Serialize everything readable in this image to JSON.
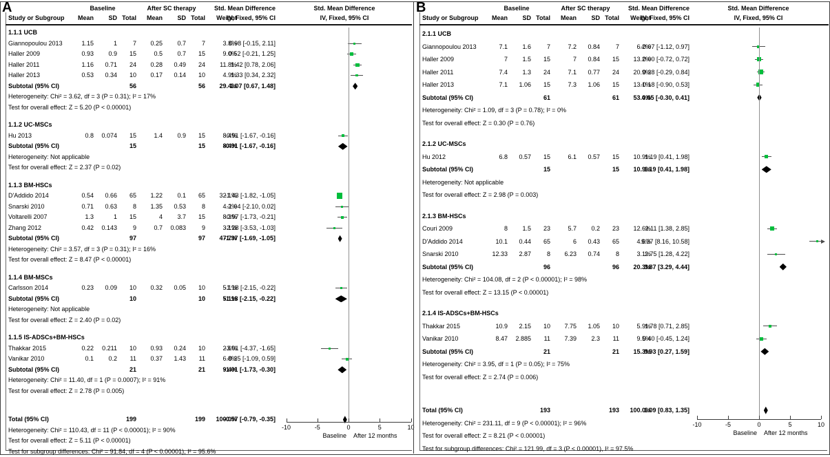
{
  "colors": {
    "marker_green": "#00bd3c",
    "ci_line": "#4a4a4a",
    "diamond": "#000000",
    "zero_line": "#8f8f8f",
    "axis": "#3a3a3a"
  },
  "chart_data": [
    {
      "type": "scatter",
      "variant": "forest-plot",
      "panel_label": "A",
      "headers": {
        "baseline": "Baseline",
        "after": "After SC therapy",
        "smd": "Std. Mean Difference",
        "study": "Study or Subgroup",
        "mean": "Mean",
        "sd": "SD",
        "total": "Total",
        "weight": "Weight",
        "ci": "IV, Fixed, 95% CI"
      },
      "axis": {
        "min": -10,
        "max": 10,
        "ticks": [
          -10,
          -5,
          0,
          5,
          10
        ],
        "left_label": "Baseline",
        "right_label": "After 12 months"
      },
      "sections": [
        {
          "name": "1.1.1 UCB",
          "studies": [
            {
              "study": "Giannopoulou 2013",
              "mean1": "1.15",
              "sd1": "1",
              "total1": "7",
              "mean2": "0.25",
              "sd2": "0.7",
              "total2": "7",
              "weight": "3.8%",
              "ci_text": "0.98 [-0.15, 2.11]",
              "smd": 0.98,
              "lo": -0.15,
              "hi": 2.11,
              "w": 3.8
            },
            {
              "study": "Haller 2009",
              "mean1": "0.93",
              "sd1": "0.9",
              "total1": "15",
              "mean2": "0.5",
              "sd2": "0.7",
              "total2": "15",
              "weight": "9.0%",
              "ci_text": "0.52 [-0.21, 1.25]",
              "smd": 0.52,
              "lo": -0.21,
              "hi": 1.25,
              "w": 9.0
            },
            {
              "study": "Haller 2011",
              "mean1": "1.16",
              "sd1": "0.71",
              "total1": "24",
              "mean2": "0.28",
              "sd2": "0.49",
              "total2": "24",
              "weight": "11.8%",
              "ci_text": "1.42 [0.78, 2.06]",
              "smd": 1.42,
              "lo": 0.78,
              "hi": 2.06,
              "w": 11.8
            },
            {
              "study": "Haller 2013",
              "mean1": "0.53",
              "sd1": "0.34",
              "total1": "10",
              "mean2": "0.17",
              "sd2": "0.14",
              "total2": "10",
              "weight": "4.9%",
              "ci_text": "1.33 [0.34, 2.32]",
              "smd": 1.33,
              "lo": 0.34,
              "hi": 2.32,
              "w": 4.9
            }
          ],
          "subtotal": {
            "label": "Subtotal (95% CI)",
            "total1": "56",
            "total2": "56",
            "weight": "29.4%",
            "ci_text": "1.07 [0.67, 1.48]",
            "smd": 1.07,
            "lo": 0.67,
            "hi": 1.48
          },
          "heterogeneity": "Heterogeneity: Chi² = 3.62, df = 3 (P = 0.31); I² = 17%",
          "test": "Test for overall effect: Z = 5.20 (P < 0.00001)"
        },
        {
          "name": "1.1.2 UC-MSCs",
          "studies": [
            {
              "study": "Hu 2013",
              "mean1": "0.8",
              "sd1": "0.074",
              "total1": "15",
              "mean2": "1.4",
              "sd2": "0.9",
              "total2": "15",
              "weight": "8.4%",
              "ci_text": "-0.91 [-1.67, -0.16]",
              "smd": -0.91,
              "lo": -1.67,
              "hi": -0.16,
              "w": 8.4
            }
          ],
          "subtotal": {
            "label": "Subtotal (95% CI)",
            "total1": "15",
            "total2": "15",
            "weight": "8.4%",
            "ci_text": "-0.91 [-1.67, -0.16]",
            "smd": -0.91,
            "lo": -1.67,
            "hi": -0.16
          },
          "heterogeneity": "Heterogeneity: Not applicable",
          "test": "Test for overall effect: Z = 2.37 (P = 0.02)"
        },
        {
          "name": "1.1.3 BM-HSCs",
          "studies": [
            {
              "study": "D'Addido 2014",
              "mean1": "0.54",
              "sd1": "0.66",
              "total1": "65",
              "mean2": "1.22",
              "sd2": "0.1",
              "total2": "65",
              "weight": "32.1%",
              "ci_text": "-1.43 [-1.82, -1.05]",
              "smd": -1.43,
              "lo": -1.82,
              "hi": -1.05,
              "w": 32.1
            },
            {
              "study": "Snarski 2010",
              "mean1": "0.71",
              "sd1": "0.63",
              "total1": "8",
              "mean2": "1.35",
              "sd2": "0.53",
              "total2": "8",
              "weight": "4.2%",
              "ci_text": "-1.04 [-2.10, 0.02]",
              "smd": -1.04,
              "lo": -2.1,
              "hi": 0.02,
              "w": 4.2
            },
            {
              "study": "Voltarelli 2007",
              "mean1": "1.3",
              "sd1": "1",
              "total1": "15",
              "mean2": "4",
              "sd2": "3.7",
              "total2": "15",
              "weight": "8.3%",
              "ci_text": "-0.97 [-1.73, -0.21]",
              "smd": -0.97,
              "lo": -1.73,
              "hi": -0.21,
              "w": 8.3
            },
            {
              "study": "Zhang 2012",
              "mean1": "0.42",
              "sd1": "0.143",
              "total1": "9",
              "mean2": "0.7",
              "sd2": "0.083",
              "total2": "9",
              "weight": "3.1%",
              "ci_text": "-2.28 [-3.53, -1.03]",
              "smd": -2.28,
              "lo": -3.53,
              "hi": -1.03,
              "w": 3.1
            }
          ],
          "subtotal": {
            "label": "Subtotal (95% CI)",
            "total1": "97",
            "total2": "97",
            "weight": "47.7%",
            "ci_text": "-1.37 [-1.69, -1.05]",
            "smd": -1.37,
            "lo": -1.69,
            "hi": -1.05
          },
          "heterogeneity": "Heterogeneity: Chi² = 3.57, df = 3 (P = 0.31); I² = 16%",
          "test": "Test for overall effect: Z = 8.47 (P < 0.00001)"
        },
        {
          "name": "1.1.4 BM-MSCs",
          "studies": [
            {
              "study": "Carlsson 2014",
              "mean1": "0.23",
              "sd1": "0.09",
              "total1": "10",
              "mean2": "0.32",
              "sd2": "0.05",
              "total2": "10",
              "weight": "5.1%",
              "ci_text": "-1.18 [-2.15, -0.22]",
              "smd": -1.18,
              "lo": -2.15,
              "hi": -0.22,
              "w": 5.1
            }
          ],
          "subtotal": {
            "label": "Subtotal (95% CI)",
            "total1": "10",
            "total2": "10",
            "weight": "5.1%",
            "ci_text": "-1.18 [-2.15, -0.22]",
            "smd": -1.18,
            "lo": -2.15,
            "hi": -0.22
          },
          "heterogeneity": "Heterogeneity: Not applicable",
          "test": "Test for overall effect: Z = 2.40 (P = 0.02)"
        },
        {
          "name": "1.1.5 IS-ADSCs+BM-HSCs",
          "studies": [
            {
              "study": "Thakkar 2015",
              "mean1": "0.22",
              "sd1": "0.211",
              "total1": "10",
              "mean2": "0.93",
              "sd2": "0.24",
              "total2": "10",
              "weight": "2.6%",
              "ci_text": "-3.01 [-4.37, -1.65]",
              "smd": -3.01,
              "lo": -4.37,
              "hi": -1.65,
              "w": 2.6
            },
            {
              "study": "Vanikar 2010",
              "mean1": "0.1",
              "sd1": "0.2",
              "total1": "11",
              "mean2": "0.37",
              "sd2": "1.43",
              "total2": "11",
              "weight": "6.8%",
              "ci_text": "-0.25 [-1.09, 0.59]",
              "smd": -0.25,
              "lo": -1.09,
              "hi": 0.59,
              "w": 6.8
            }
          ],
          "subtotal": {
            "label": "Subtotal (95% CI)",
            "total1": "21",
            "total2": "21",
            "weight": "9.4%",
            "ci_text": "-1.01 [-1.73, -0.30]",
            "smd": -1.01,
            "lo": -1.73,
            "hi": -0.3
          },
          "heterogeneity": "Heterogeneity: Chi² = 11.40, df = 1 (P = 0.0007); I² = 91%",
          "test": "Test for overall effect: Z = 2.78 (P = 0.005)"
        }
      ],
      "total": {
        "label": "Total (95% CI)",
        "total1": "199",
        "total2": "199",
        "weight": "100.0%",
        "ci_text": "-0.57 [-0.79, -0.35]",
        "smd": -0.57,
        "lo": -0.79,
        "hi": -0.35
      },
      "total_heterogeneity": "Heterogeneity: Chi² = 110.43, df = 11 (P < 0.00001); I² = 90%",
      "total_test": "Test for overall effect: Z = 5.11 (P < 0.00001)",
      "subgroup_diff": "Test for subgroup differences: Chi² = 91.84, df = 4 (P < 0.00001), I² = 95.6%"
    },
    {
      "type": "scatter",
      "variant": "forest-plot",
      "panel_label": "B",
      "headers": {
        "baseline": "Baseline",
        "after": "After SC therapy",
        "smd": "Std. Mean Difference",
        "study": "Study or Subgroup",
        "mean": "Mean",
        "sd": "SD",
        "total": "Total",
        "weight": "Weight",
        "ci": "IV, Fixed, 95% CI"
      },
      "axis": {
        "min": -10,
        "max": 10,
        "ticks": [
          -10,
          -5,
          0,
          5,
          10
        ],
        "left_label": "Baseline",
        "right_label": "After 12 months"
      },
      "sections": [
        {
          "name": "2.1.1 UCB",
          "studies": [
            {
              "study": "Giannopoulou 2013",
              "mean1": "7.1",
              "sd1": "1.6",
              "total1": "7",
              "mean2": "7.2",
              "sd2": "0.84",
              "total2": "7",
              "weight": "6.2%",
              "ci_text": "-0.07 [-1.12, 0.97]",
              "smd": -0.07,
              "lo": -1.12,
              "hi": 0.97,
              "w": 6.2
            },
            {
              "study": "Haller 2009",
              "mean1": "7",
              "sd1": "1.5",
              "total1": "15",
              "mean2": "7",
              "sd2": "0.84",
              "total2": "15",
              "weight": "13.2%",
              "ci_text": "0.00 [-0.72, 0.72]",
              "smd": 0.0,
              "lo": -0.72,
              "hi": 0.72,
              "w": 13.2
            },
            {
              "study": "Haller 2011",
              "mean1": "7.4",
              "sd1": "1.3",
              "total1": "24",
              "mean2": "7.1",
              "sd2": "0.77",
              "total2": "24",
              "weight": "20.9%",
              "ci_text": "0.28 [-0.29, 0.84]",
              "smd": 0.28,
              "lo": -0.29,
              "hi": 0.84,
              "w": 20.9
            },
            {
              "study": "Haller 2013",
              "mean1": "7.1",
              "sd1": "1.06",
              "total1": "15",
              "mean2": "7.3",
              "sd2": "1.06",
              "total2": "15",
              "weight": "13.1%",
              "ci_text": "-0.18 [-0.90, 0.53]",
              "smd": -0.18,
              "lo": -0.9,
              "hi": 0.53,
              "w": 13.1
            }
          ],
          "subtotal": {
            "label": "Subtotal (95% CI)",
            "total1": "61",
            "total2": "61",
            "weight": "53.4%",
            "ci_text": "0.05 [-0.30, 0.41]",
            "smd": 0.05,
            "lo": -0.3,
            "hi": 0.41
          },
          "heterogeneity": "Heterogeneity: Chi² = 1.09, df = 3 (P = 0.78); I² = 0%",
          "test": "Test for overall effect: Z = 0.30 (P = 0.76)"
        },
        {
          "name": "2.1.2 UC-MSCs",
          "studies": [
            {
              "study": "Hu 2012",
              "mean1": "6.8",
              "sd1": "0.57",
              "total1": "15",
              "mean2": "6.1",
              "sd2": "0.57",
              "total2": "15",
              "weight": "10.9%",
              "ci_text": "1.19 [0.41, 1.98]",
              "smd": 1.19,
              "lo": 0.41,
              "hi": 1.98,
              "w": 10.9
            }
          ],
          "subtotal": {
            "label": "Subtotal (95% CI)",
            "total1": "15",
            "total2": "15",
            "weight": "10.9%",
            "ci_text": "1.19 [0.41, 1.98]",
            "smd": 1.19,
            "lo": 0.41,
            "hi": 1.98
          },
          "heterogeneity": "Heterogeneity: Not applicable",
          "test": "Test for overall effect: Z = 2.98 (P = 0.003)"
        },
        {
          "name": "2.1.3 BM-HSCs",
          "studies": [
            {
              "study": "Couri 2009",
              "mean1": "8",
              "sd1": "1.5",
              "total1": "23",
              "mean2": "5.7",
              "sd2": "0.2",
              "total2": "23",
              "weight": "12.6%",
              "ci_text": "2.11 [1.38, 2.85]",
              "smd": 2.11,
              "lo": 1.38,
              "hi": 2.85,
              "w": 12.6
            },
            {
              "study": "D'Addido 2014",
              "mean1": "10.1",
              "sd1": "0.44",
              "total1": "65",
              "mean2": "6",
              "sd2": "0.43",
              "total2": "65",
              "weight": "4.6%",
              "ci_text": "9.37 [8.16, 10.58]",
              "smd": 9.37,
              "lo": 8.16,
              "hi": 10.58,
              "w": 4.6
            },
            {
              "study": "Snarski 2010",
              "mean1": "12.33",
              "sd1": "2.87",
              "total1": "8",
              "mean2": "6.23",
              "sd2": "0.74",
              "total2": "8",
              "weight": "3.1%",
              "ci_text": "2.75 [1.28, 4.22]",
              "smd": 2.75,
              "lo": 1.28,
              "hi": 4.22,
              "w": 3.1
            }
          ],
          "subtotal": {
            "label": "Subtotal (95% CI)",
            "total1": "96",
            "total2": "96",
            "weight": "20.3%",
            "ci_text": "3.87 [3.29, 4.44]",
            "smd": 3.87,
            "lo": 3.29,
            "hi": 4.44
          },
          "heterogeneity": "Heterogeneity: Chi² = 104.08, df = 2 (P < 0.00001); I² = 98%",
          "test": "Test for overall effect: Z = 13.15 (P < 0.00001)"
        },
        {
          "name": "2.1.4 IS-ADSCs+BM-HSCs",
          "studies": [
            {
              "study": "Thakkar 2015",
              "mean1": "10.9",
              "sd1": "2.15",
              "total1": "10",
              "mean2": "7.75",
              "sd2": "1.05",
              "total2": "10",
              "weight": "5.9%",
              "ci_text": "1.78 [0.71, 2.85]",
              "smd": 1.78,
              "lo": 0.71,
              "hi": 2.85,
              "w": 5.9
            },
            {
              "study": "Vanikar 2010",
              "mean1": "8.47",
              "sd1": "2.885",
              "total1": "11",
              "mean2": "7.39",
              "sd2": "2.3",
              "total2": "11",
              "weight": "9.5%",
              "ci_text": "0.40 [-0.45, 1.24]",
              "smd": 0.4,
              "lo": -0.45,
              "hi": 1.24,
              "w": 9.5
            }
          ],
          "subtotal": {
            "label": "Subtotal (95% CI)",
            "total1": "21",
            "total2": "21",
            "weight": "15.3%",
            "ci_text": "0.93 [0.27, 1.59]",
            "smd": 0.93,
            "lo": 0.27,
            "hi": 1.59
          },
          "heterogeneity": "Heterogeneity: Chi² = 3.95, df = 1 (P = 0.05); I² = 75%",
          "test": "Test for overall effect: Z = 2.74 (P = 0.006)"
        }
      ],
      "total": {
        "label": "Total (95% CI)",
        "total1": "193",
        "total2": "193",
        "weight": "100.0%",
        "ci_text": "1.09 [0.83, 1.35]",
        "smd": 1.09,
        "lo": 0.83,
        "hi": 1.35
      },
      "total_heterogeneity": "Heterogeneity: Chi² = 231.11, df = 9 (P < 0.00001); I² = 96%",
      "total_test": "Test for overall effect: Z = 8.21 (P < 0.00001)",
      "subgroup_diff": "Test for subgroup differences: Chi² = 121.99, df = 3 (P < 0.00001), I² = 97.5%"
    }
  ]
}
